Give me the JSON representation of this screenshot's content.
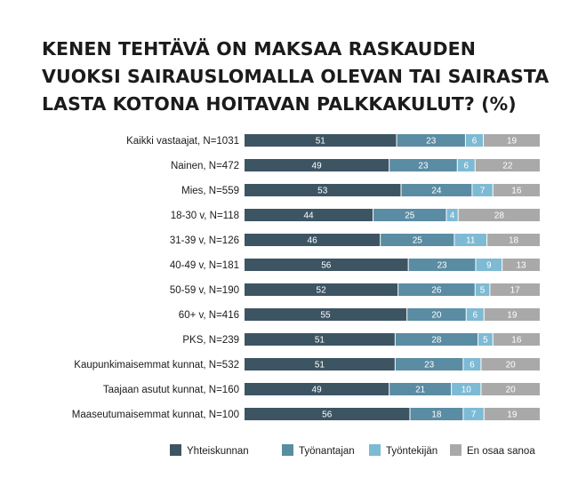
{
  "chart_data": {
    "type": "bar",
    "stacked": true,
    "orientation": "horizontal",
    "title": "KENEN TEHTÄVÄ ON MAKSAA RASKAUDEN VUOKSI SAIRAUSLOMALLA OLEVAN TAI SAIRASTA LASTA KOTONA HOITAVAN PALKKAKULUT? (%)",
    "categories": [
      "Kaikki vastaajat, N=1031",
      "Nainen, N=472",
      "Mies, N=559",
      "18-30 v, N=118",
      "31-39 v, N=126",
      "40-49 v, N=181",
      "50-59 v, N=190",
      "60+ v, N=416",
      "PKS, N=239",
      "Kaupunkimaisemmat kunnat, N=532",
      "Taajaan asutut kunnat, N=160",
      "Maaseutumaisemmat kunnat, N=100"
    ],
    "series": [
      {
        "name": "Yhteiskunnan",
        "color": "#3d5563",
        "values": [
          51,
          49,
          53,
          44,
          46,
          56,
          52,
          55,
          51,
          51,
          49,
          56
        ]
      },
      {
        "name": "Työnantajan",
        "color": "#5a8ca3",
        "values": [
          23,
          23,
          24,
          25,
          25,
          23,
          26,
          20,
          28,
          23,
          21,
          18
        ]
      },
      {
        "name": "Työntekijän",
        "color": "#7dbad3",
        "values": [
          6,
          6,
          7,
          4,
          11,
          9,
          5,
          6,
          5,
          6,
          10,
          7
        ]
      },
      {
        "name": "En osaa sanoa",
        "color": "#a9a9a9",
        "values": [
          19,
          22,
          16,
          28,
          18,
          13,
          17,
          19,
          16,
          20,
          20,
          19
        ]
      }
    ],
    "xlim": [
      0,
      100
    ],
    "legend_position": "bottom-right",
    "grid": false
  }
}
